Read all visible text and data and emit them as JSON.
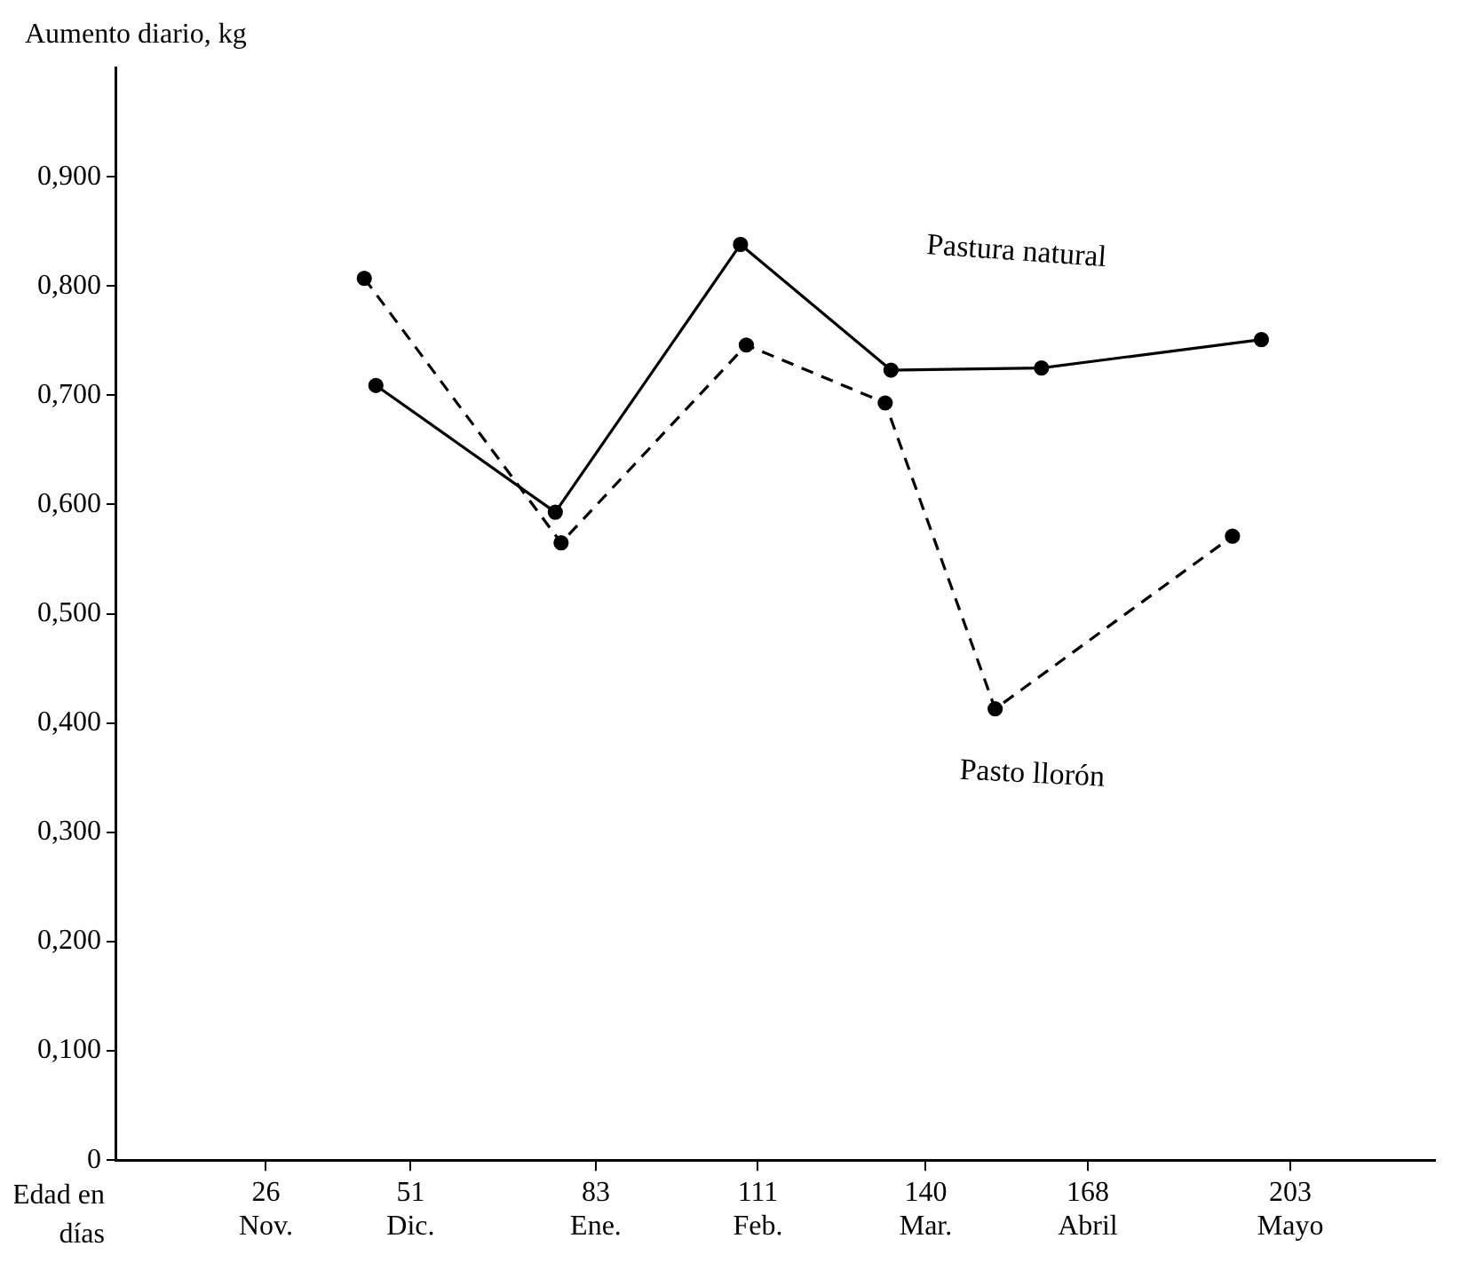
{
  "chart_data": {
    "type": "line",
    "ylabel": "Aumento diario, kg",
    "xlabel": "Edad en días",
    "xlim": [
      0,
      228
    ],
    "ylim": [
      0,
      1.0
    ],
    "xticks": [
      {
        "value": 26,
        "label": "26\nNov."
      },
      {
        "value": 51,
        "label": "51\nDic."
      },
      {
        "value": 83,
        "label": "83\nEne."
      },
      {
        "value": 111,
        "label": "111\nFeb."
      },
      {
        "value": 140,
        "label": "140\nMar."
      },
      {
        "value": 168,
        "label": "168\nAbril"
      },
      {
        "value": 203,
        "label": "203\nMayo"
      }
    ],
    "yticks": [
      {
        "value": 0,
        "label": "0"
      },
      {
        "value": 0.1,
        "label": "0,100"
      },
      {
        "value": 0.2,
        "label": "0,200"
      },
      {
        "value": 0.3,
        "label": "0,300"
      },
      {
        "value": 0.4,
        "label": "0,400"
      },
      {
        "value": 0.5,
        "label": "0,500"
      },
      {
        "value": 0.6,
        "label": "0,600"
      },
      {
        "value": 0.7,
        "label": "0,700"
      },
      {
        "value": 0.8,
        "label": "0,800"
      },
      {
        "value": 0.9,
        "label": "0,900"
      }
    ],
    "grid": false,
    "legend": false,
    "marker": "circle",
    "series": [
      {
        "name": "Pastura natural",
        "color": "#000000",
        "line_style": "solid",
        "x": [
          45,
          76,
          108,
          134,
          160,
          198
        ],
        "values": [
          0.709,
          0.593,
          0.838,
          0.723,
          0.725,
          0.751
        ]
      },
      {
        "name": "Pasto llorón",
        "color": "#000000",
        "line_style": "dashed",
        "x": [
          43,
          77,
          109,
          133,
          152,
          193
        ],
        "values": [
          0.807,
          0.565,
          0.746,
          0.693,
          0.413,
          0.571
        ]
      }
    ]
  }
}
